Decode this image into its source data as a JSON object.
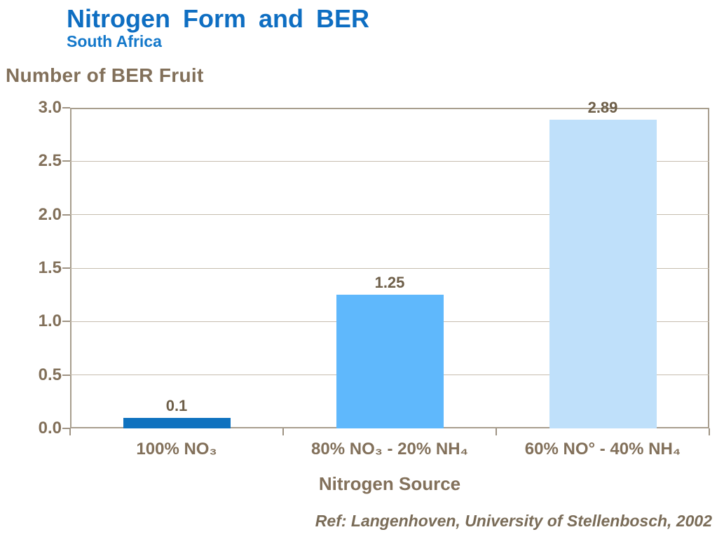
{
  "header": {
    "title": "Nitrogen Form and BER",
    "subtitle": "South Africa"
  },
  "footer": {
    "reference": "Ref: Langenhoven, University of Stellenbosch, 2002"
  },
  "chart_data": {
    "type": "bar",
    "title": "Nitrogen Form and BER",
    "subtitle": "South Africa",
    "categories": [
      "100% NO₃",
      "80% NO₃ - 20% NH₄",
      "60% NO° - 40% NH₄"
    ],
    "values": [
      0.1,
      1.25,
      2.89
    ],
    "value_labels": [
      "0.1",
      "1.25",
      "2.89"
    ],
    "bar_colors": [
      "#0F72BF",
      "#5FB8FC",
      "#BFE0FA"
    ],
    "xlabel": "Nitrogen Source",
    "ylabel": "Number of BER Fruit",
    "ylim": [
      0,
      3
    ],
    "ytick_step": 0.5,
    "yticks": [
      "0.0",
      "0.5",
      "1.0",
      "1.5",
      "2.0",
      "2.5",
      "3.0"
    ],
    "grid": true,
    "legend": false
  },
  "colors": {
    "title": "#0E6EC2",
    "subtitle": "#1478CA",
    "axis_text": "#82705A",
    "data_label": "#6E5F49",
    "footer_text": "#7A6C58",
    "axis_line": "#9E9383",
    "grid_line": "#C6BDAF",
    "plot_border": "#A89E8E",
    "background": "#FFFFFF"
  }
}
